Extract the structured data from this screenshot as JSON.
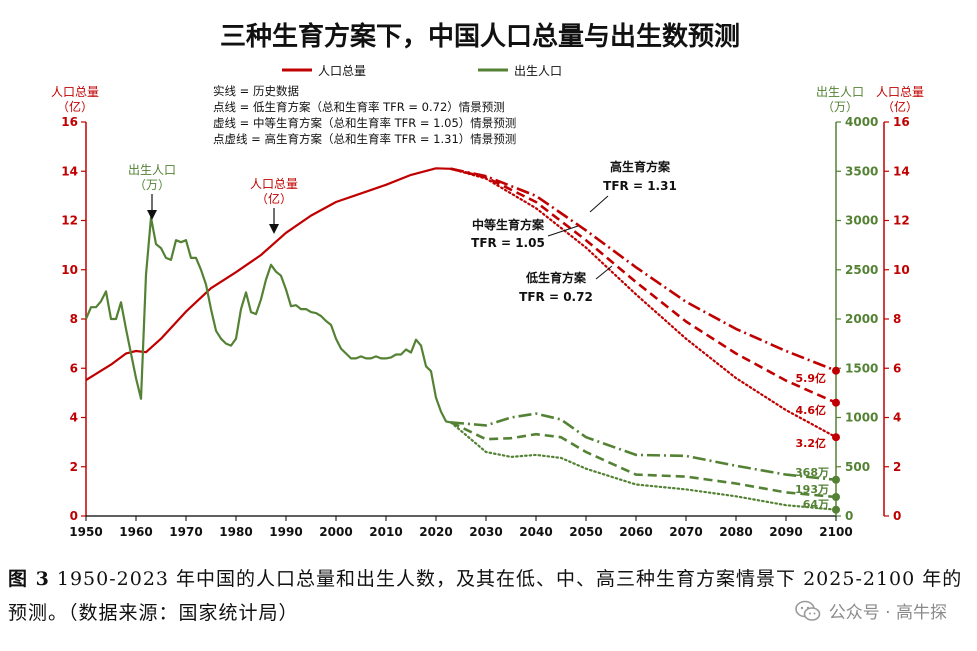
{
  "chart_data": {
    "type": "line",
    "title": "三种生育方案下，中国人口总量与出生数预测",
    "legend": [
      {
        "name": "人口总量",
        "color": "#c00000"
      },
      {
        "name": "出生人口",
        "color": "#548235"
      }
    ],
    "notes": [
      "实线 = 历史数据",
      "点线 = 低生育方案（总和生育率  TFR = 0.72）情景预测",
      "虚线 = 中等生育方案（总和生育率  TFR = 1.05）情景预测",
      "点虚线 = 高生育方案（总和生育率  TFR = 1.31）情景预测"
    ],
    "left_axis": {
      "label_line1": "人口总量",
      "label_line2": "（亿）",
      "range": [
        0,
        16
      ],
      "ticks": [
        "0",
        "2",
        "4",
        "6",
        "8",
        "10",
        "12",
        "14",
        "16"
      ],
      "color": "#c00000"
    },
    "right_axis_births": {
      "label_line1": "出生人口",
      "label_line2": "（万）",
      "range": [
        0,
        4000
      ],
      "ticks": [
        "0",
        "500",
        "1000",
        "1500",
        "2000",
        "2500",
        "3000",
        "3500",
        "4000"
      ],
      "color": "#548235"
    },
    "right_axis_pop": {
      "label_line1": "人口总量",
      "label_line2": "（亿）",
      "range": [
        0,
        16
      ],
      "ticks": [
        "0",
        "2",
        "4",
        "6",
        "8",
        "10",
        "12",
        "14",
        "16"
      ],
      "color": "#c00000"
    },
    "x_axis": {
      "range": [
        1950,
        2100
      ],
      "ticks": [
        "1950",
        "1960",
        "1970",
        "1980",
        "1990",
        "2000",
        "2010",
        "2020",
        "2030",
        "2040",
        "2050",
        "2060",
        "2070",
        "2080",
        "2090",
        "2100"
      ]
    },
    "series": [
      {
        "name": "人口总量",
        "axis": "pop",
        "style": "solid",
        "color": "#c00000",
        "x": [
          1950,
          1955,
          1958,
          1960,
          1962,
          1965,
          1970,
          1975,
          1980,
          1985,
          1990,
          1995,
          2000,
          2005,
          2010,
          2015,
          2020,
          2023
        ],
        "y": [
          5.52,
          6.15,
          6.6,
          6.7,
          6.65,
          7.2,
          8.3,
          9.25,
          9.9,
          10.6,
          11.5,
          12.2,
          12.75,
          13.1,
          13.45,
          13.85,
          14.12,
          14.1
        ]
      },
      {
        "name": "低生育方案",
        "axis": "pop",
        "style": "dotted",
        "color": "#c00000",
        "x": [
          2023,
          2030,
          2040,
          2050,
          2060,
          2070,
          2080,
          2090,
          2100
        ],
        "y": [
          14.1,
          13.7,
          12.5,
          10.9,
          9.0,
          7.2,
          5.6,
          4.3,
          3.2
        ]
      },
      {
        "name": "中等生育方案",
        "axis": "pop",
        "style": "dashed",
        "color": "#c00000",
        "x": [
          2023,
          2030,
          2040,
          2050,
          2060,
          2070,
          2080,
          2090,
          2100
        ],
        "y": [
          14.1,
          13.75,
          12.75,
          11.2,
          9.5,
          7.9,
          6.6,
          5.5,
          4.6
        ]
      },
      {
        "name": "高生育方案",
        "axis": "pop",
        "style": "dashdot",
        "color": "#c00000",
        "x": [
          2023,
          2030,
          2040,
          2050,
          2060,
          2070,
          2080,
          2090,
          2100
        ],
        "y": [
          14.1,
          13.8,
          13.0,
          11.6,
          10.1,
          8.7,
          7.6,
          6.7,
          5.9
        ]
      },
      {
        "name": "出生人口",
        "axis": "births",
        "style": "solid",
        "color": "#548235",
        "x": [
          1950,
          1951,
          1952,
          1953,
          1954,
          1955,
          1956,
          1957,
          1958,
          1959,
          1960,
          1961,
          1962,
          1963,
          1964,
          1965,
          1966,
          1967,
          1968,
          1969,
          1970,
          1971,
          1972,
          1973,
          1974,
          1975,
          1976,
          1977,
          1978,
          1979,
          1980,
          1981,
          1982,
          1983,
          1984,
          1985,
          1986,
          1987,
          1988,
          1989,
          1990,
          1991,
          1992,
          1993,
          1994,
          1995,
          1996,
          1997,
          1998,
          1999,
          2000,
          2001,
          2002,
          2003,
          2004,
          2005,
          2006,
          2007,
          2008,
          2009,
          2010,
          2011,
          2012,
          2013,
          2014,
          2015,
          2016,
          2017,
          2018,
          2019,
          2020,
          2021,
          2022,
          2023
        ],
        "y": [
          2000,
          2120,
          2120,
          2180,
          2280,
          2000,
          2000,
          2170,
          1900,
          1650,
          1400,
          1190,
          2450,
          3030,
          2760,
          2720,
          2620,
          2600,
          2800,
          2780,
          2800,
          2620,
          2620,
          2500,
          2350,
          2100,
          1880,
          1800,
          1750,
          1730,
          1800,
          2100,
          2270,
          2070,
          2050,
          2200,
          2400,
          2550,
          2480,
          2440,
          2300,
          2130,
          2140,
          2100,
          2100,
          2070,
          2060,
          2030,
          1980,
          1940,
          1800,
          1700,
          1650,
          1600,
          1600,
          1620,
          1600,
          1600,
          1620,
          1600,
          1600,
          1610,
          1640,
          1640,
          1690,
          1660,
          1790,
          1730,
          1520,
          1470,
          1200,
          1060,
          960,
          950
        ]
      },
      {
        "name": "低生育方案",
        "axis": "births",
        "style": "dotted",
        "color": "#548235",
        "x": [
          2023,
          2030,
          2035,
          2040,
          2045,
          2050,
          2060,
          2070,
          2080,
          2090,
          2100
        ],
        "y": [
          950,
          650,
          600,
          620,
          590,
          480,
          320,
          270,
          200,
          110,
          64
        ]
      },
      {
        "name": "中等生育方案",
        "axis": "births",
        "style": "dashed",
        "color": "#548235",
        "x": [
          2023,
          2030,
          2035,
          2040,
          2045,
          2050,
          2060,
          2070,
          2080,
          2090,
          2100
        ],
        "y": [
          950,
          780,
          790,
          830,
          800,
          650,
          420,
          400,
          330,
          240,
          193
        ]
      },
      {
        "name": "高生育方案",
        "axis": "births",
        "style": "dashdot",
        "color": "#548235",
        "x": [
          2023,
          2030,
          2035,
          2040,
          2045,
          2050,
          2060,
          2070,
          2080,
          2090,
          2100
        ],
        "y": [
          950,
          920,
          1000,
          1040,
          980,
          800,
          620,
          610,
          510,
          420,
          368
        ]
      }
    ],
    "annotations": {
      "pop_label": {
        "line1": "人口总量",
        "line2": "（亿）"
      },
      "births_label": {
        "line1": "出生人口",
        "line2": "（万）"
      },
      "high": {
        "line1": "高生育方案",
        "line2": "TFR = 1.31"
      },
      "mid": {
        "line1": "中等生育方案",
        "line2": "TFR = 1.05"
      },
      "low": {
        "line1": "低生育方案",
        "line2": "TFR = 0.72"
      },
      "end_pop": [
        "5.9亿",
        "4.6亿",
        "3.2亿"
      ],
      "end_births": [
        "368万",
        "193万",
        "64万"
      ]
    },
    "grid": false
  },
  "caption": {
    "fig": "图 3",
    "text": " 1950-2023 年中国的人口总量和出生人数，及其在低、中、高三种生育方案情景下 2025-2100 年的预测。（数据来源：国家统计局）"
  },
  "watermark": "公众号 · 高牛探"
}
